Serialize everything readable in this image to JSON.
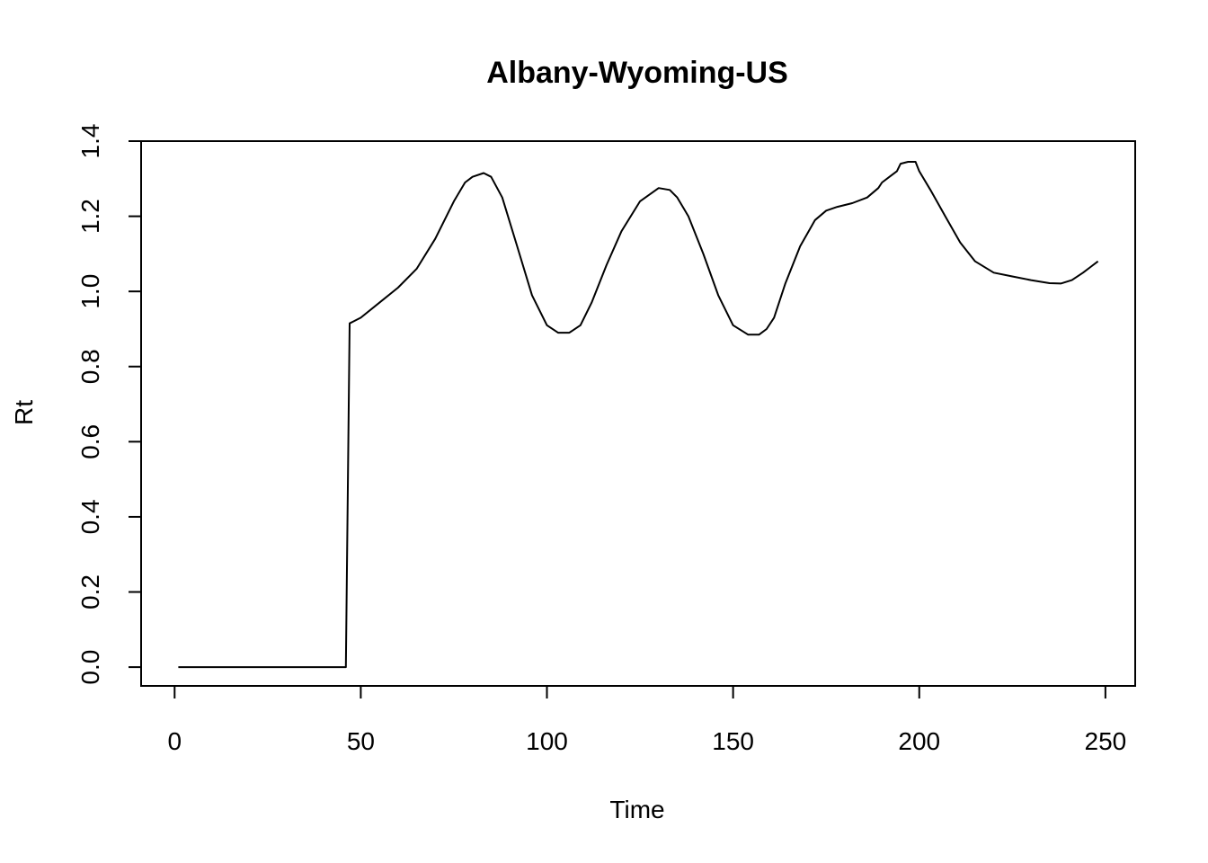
{
  "chart_data": {
    "type": "line",
    "title": "Albany-Wyoming-US",
    "xlabel": "Time",
    "ylabel": "Rt",
    "xlim": [
      -9,
      258
    ],
    "ylim": [
      -0.05,
      1.4
    ],
    "xticks": [
      0,
      50,
      100,
      150,
      200,
      250
    ],
    "yticks": [
      0.0,
      0.2,
      0.4,
      0.6,
      0.8,
      1.0,
      1.2,
      1.4
    ],
    "xtick_labels": [
      "0",
      "50",
      "100",
      "150",
      "200",
      "250"
    ],
    "ytick_labels": [
      "0.0",
      "0.2",
      "0.4",
      "0.6",
      "0.8",
      "1.0",
      "1.2",
      "1.4"
    ],
    "grid": false,
    "series": [
      {
        "x": [
          1,
          46,
          47,
          48,
          50,
          55,
          60,
          65,
          70,
          75,
          78,
          80,
          83,
          85,
          88,
          92,
          96,
          100,
          103,
          106,
          109,
          112,
          116,
          120,
          125,
          130,
          133,
          135,
          138,
          142,
          146,
          150,
          154,
          157,
          159,
          161,
          164,
          168,
          172,
          175,
          178,
          182,
          186,
          189,
          190,
          192,
          194,
          195,
          197,
          199,
          200,
          203,
          207,
          211,
          215,
          220,
          225,
          230,
          235,
          238,
          241,
          244,
          246,
          248
        ],
        "y": [
          0.0,
          0.0,
          0.915,
          0.92,
          0.93,
          0.97,
          1.01,
          1.06,
          1.14,
          1.24,
          1.29,
          1.305,
          1.315,
          1.305,
          1.25,
          1.12,
          0.99,
          0.91,
          0.89,
          0.89,
          0.91,
          0.97,
          1.07,
          1.16,
          1.24,
          1.275,
          1.27,
          1.25,
          1.2,
          1.1,
          0.99,
          0.91,
          0.885,
          0.885,
          0.9,
          0.93,
          1.02,
          1.12,
          1.19,
          1.215,
          1.225,
          1.235,
          1.25,
          1.275,
          1.29,
          1.305,
          1.32,
          1.34,
          1.345,
          1.345,
          1.32,
          1.27,
          1.2,
          1.13,
          1.08,
          1.05,
          1.04,
          1.03,
          1.022,
          1.021,
          1.03,
          1.05,
          1.065,
          1.08
        ]
      }
    ]
  }
}
